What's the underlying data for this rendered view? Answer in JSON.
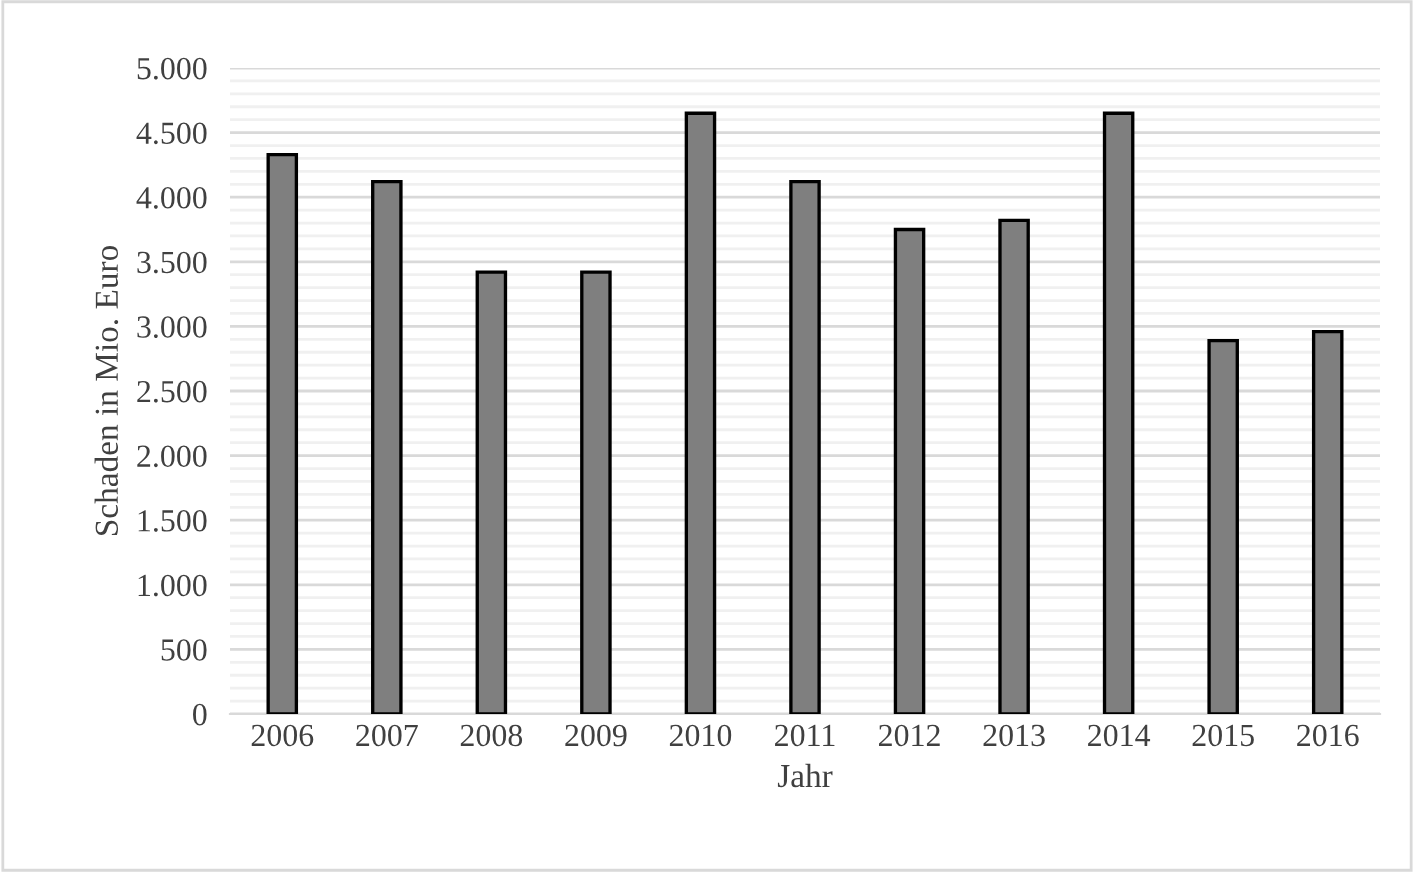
{
  "chart_data": {
    "type": "bar",
    "xlabel": "Jahr",
    "ylabel": "Schaden in Mio. Euro",
    "categories": [
      "2006",
      "2007",
      "2008",
      "2009",
      "2010",
      "2011",
      "2012",
      "2013",
      "2014",
      "2015",
      "2016"
    ],
    "values": [
      4330,
      4120,
      3420,
      3420,
      4650,
      4120,
      3750,
      3820,
      4650,
      2890,
      2960
    ],
    "color": "#7f7f7f",
    "ylim": [
      0,
      5000
    ],
    "yticks": [
      {
        "value": 0,
        "label": "0"
      },
      {
        "value": 500,
        "label": "500"
      },
      {
        "value": 1000,
        "label": "1.000"
      },
      {
        "value": 1500,
        "label": "1.500"
      },
      {
        "value": 2000,
        "label": "2.000"
      },
      {
        "value": 2500,
        "label": "2.500"
      },
      {
        "value": 3000,
        "label": "3.000"
      },
      {
        "value": 3500,
        "label": "3.500"
      },
      {
        "value": 4000,
        "label": "4.000"
      },
      {
        "value": 4500,
        "label": "4.500"
      },
      {
        "value": 5000,
        "label": "5.000"
      }
    ],
    "grid": "y"
  }
}
